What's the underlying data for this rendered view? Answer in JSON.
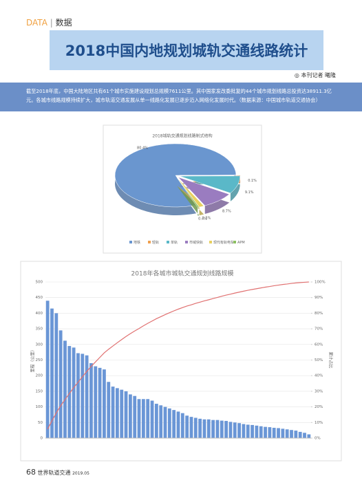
{
  "header": {
    "section": "DATA",
    "section_cn": "数据"
  },
  "title": "2018中国内地规划城轨交通线路统计",
  "byline": "◎ 本刊记者 曦隆",
  "intro": "截至2018年底，中国大陆地区共有61个城市实施建设规划总规模7611公里。其中国家发改委批复的44个城市规划线路总投资达38911.3亿元。各城市线路规模持续扩大，城市轨道交通发展从单一线路化发展已逐步迈入网络化发展时代。",
  "source": "（数据来源：中国城市轨道交通协会）",
  "chart_data": [
    {
      "type": "pie",
      "title": "2018城轨交通规划线路制式结构",
      "categories": [
        "地铁",
        "轻轨",
        "单轨",
        "市域快轨",
        "现代有轨电车",
        "APM"
      ],
      "values": [
        80.4,
        0.1,
        9.1,
        8.7,
        1.3,
        0.4
      ],
      "value_labels": [
        "80.4%",
        "0.1%",
        "9.1%",
        "8.7%",
        "1.3%",
        "0.4%"
      ],
      "colors": [
        "#6a96cf",
        "#f0a050",
        "#5ab8c8",
        "#9a7cc0",
        "#e8d060",
        "#8cc060"
      ],
      "legend": "bottom"
    },
    {
      "type": "bar",
      "title": "2018年各城市城轨交通规划线路规模",
      "y_label": "里程（公里）",
      "y2_label": "累计占比",
      "categories": [
        null,
        null,
        null,
        null,
        null,
        null,
        null,
        null,
        null,
        null,
        null,
        null,
        null,
        null,
        null,
        null,
        null,
        null,
        null,
        null,
        null,
        null,
        null,
        null,
        null,
        null,
        null,
        null,
        null,
        null,
        null,
        null,
        null,
        null,
        null,
        null,
        null,
        null,
        null,
        null,
        null,
        null,
        null,
        null,
        null,
        null,
        null,
        null,
        null,
        null,
        null,
        null,
        null,
        null,
        null,
        null,
        null,
        null,
        null,
        null,
        null
      ],
      "ylim": [
        0,
        500
      ],
      "yticks": [
        0,
        50,
        100,
        150,
        200,
        250,
        300,
        350,
        400,
        450,
        500
      ],
      "y2lim": [
        0,
        100
      ],
      "y2ticks": [
        {
          "value": 0,
          "label": "0%"
        },
        {
          "value": 10,
          "label": "10%"
        },
        {
          "value": 20,
          "label": "20%"
        },
        {
          "value": 30,
          "label": "30%"
        },
        {
          "value": 40,
          "label": "40%"
        },
        {
          "value": 50,
          "label": "50%"
        },
        {
          "value": 60,
          "label": "60%"
        },
        {
          "value": 70,
          "label": "70%"
        },
        {
          "value": 80,
          "label": "80%"
        },
        {
          "value": 90,
          "label": "90%"
        },
        {
          "value": 100,
          "label": "100%"
        }
      ],
      "grid": true,
      "series": [
        {
          "color": "#6a96d6",
          "values": [
            440,
            415,
            400,
            345,
            312,
            295,
            290,
            272,
            270,
            265,
            240,
            230,
            225,
            220,
            180,
            165,
            160,
            155,
            150,
            140,
            135,
            125,
            125,
            125,
            120,
            110,
            105,
            100,
            95,
            90,
            85,
            80,
            72,
            68,
            65,
            62,
            60,
            60,
            58,
            58,
            56,
            55,
            52,
            50,
            48,
            45,
            43,
            42,
            40,
            38,
            36,
            35,
            33,
            32,
            30,
            28,
            26,
            24,
            20,
            17,
            12
          ]
        },
        {
          "type": "line",
          "axis": "y2",
          "color": "#e07070",
          "values": [
            5.7,
            11.1,
            16.2,
            20.7,
            24.7,
            28.6,
            32.3,
            35.8,
            39.3,
            42.7,
            45.9,
            48.8,
            51.7,
            54.6,
            56.9,
            59.0,
            61.1,
            63.1,
            65.1,
            66.9,
            68.6,
            70.2,
            71.9,
            73.5,
            75.0,
            76.5,
            77.8,
            79.1,
            80.3,
            81.5,
            82.6,
            83.6,
            84.6,
            85.4,
            86.3,
            87.1,
            87.9,
            88.6,
            89.4,
            90.1,
            90.9,
            91.6,
            92.2,
            92.9,
            93.5,
            94.1,
            94.7,
            95.2,
            95.7,
            96.2,
            96.7,
            97.1,
            97.6,
            98.0,
            98.4,
            98.7,
            99.1,
            99.4,
            99.6,
            99.8,
            100
          ]
        }
      ]
    }
  ],
  "footer": {
    "page": "68",
    "magazine": "世界轨道交通",
    "issue": "2019.05"
  }
}
